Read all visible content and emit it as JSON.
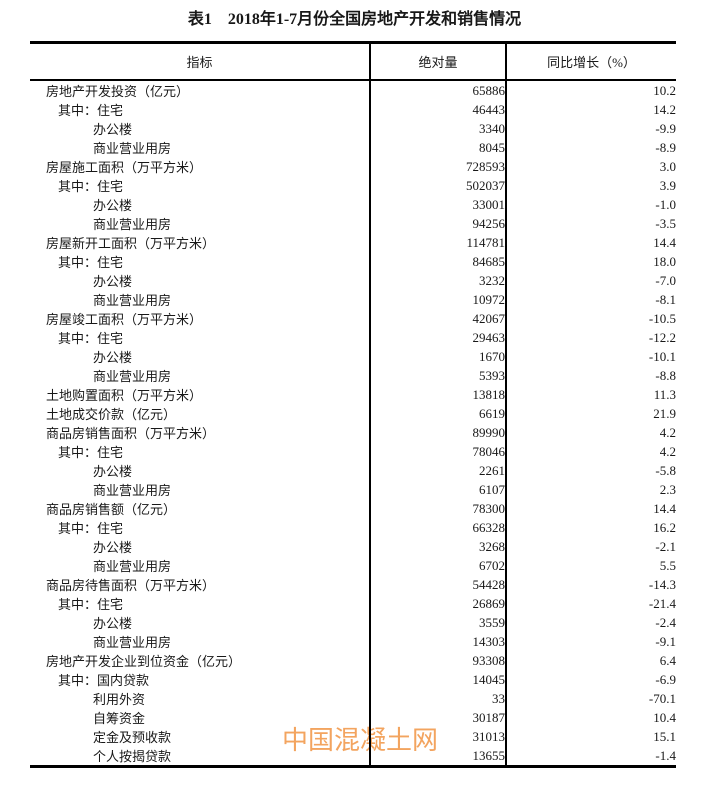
{
  "page": {
    "title": "表1　2018年1-7月份全国房地产开发和销售情况",
    "watermark": "中国混凝土网",
    "watermark_color": "#f3a45f",
    "text_color": "#181818",
    "border_color": "#000000"
  },
  "table": {
    "headers": [
      "指标",
      "绝对量",
      "同比增长（%）"
    ],
    "rows": [
      {
        "label": "房地产开发投资（亿元）",
        "indent": 0,
        "absolute": "65886",
        "growth": "10.2"
      },
      {
        "label": "其中：住宅",
        "indent": 1,
        "absolute": "46443",
        "growth": "14.2"
      },
      {
        "label": "办公楼",
        "indent": 2,
        "absolute": "3340",
        "growth": "-9.9"
      },
      {
        "label": "商业营业用房",
        "indent": 2,
        "absolute": "8045",
        "growth": "-8.9"
      },
      {
        "label": "房屋施工面积（万平方米）",
        "indent": 0,
        "absolute": "728593",
        "growth": "3.0"
      },
      {
        "label": "其中：住宅",
        "indent": 1,
        "absolute": "502037",
        "growth": "3.9"
      },
      {
        "label": "办公楼",
        "indent": 2,
        "absolute": "33001",
        "growth": "-1.0"
      },
      {
        "label": "商业营业用房",
        "indent": 2,
        "absolute": "94256",
        "growth": "-3.5"
      },
      {
        "label": "房屋新开工面积（万平方米）",
        "indent": 0,
        "absolute": "114781",
        "growth": "14.4"
      },
      {
        "label": "其中：住宅",
        "indent": 1,
        "absolute": "84685",
        "growth": "18.0"
      },
      {
        "label": "办公楼",
        "indent": 2,
        "absolute": "3232",
        "growth": "-7.0"
      },
      {
        "label": "商业营业用房",
        "indent": 2,
        "absolute": "10972",
        "growth": "-8.1"
      },
      {
        "label": "房屋竣工面积（万平方米）",
        "indent": 0,
        "absolute": "42067",
        "growth": "-10.5"
      },
      {
        "label": "其中：住宅",
        "indent": 1,
        "absolute": "29463",
        "growth": "-12.2"
      },
      {
        "label": "办公楼",
        "indent": 2,
        "absolute": "1670",
        "growth": "-10.1"
      },
      {
        "label": "商业营业用房",
        "indent": 2,
        "absolute": "5393",
        "growth": "-8.8"
      },
      {
        "label": "土地购置面积（万平方米）",
        "indent": 0,
        "absolute": "13818",
        "growth": "11.3"
      },
      {
        "label": "土地成交价款（亿元）",
        "indent": 0,
        "absolute": "6619",
        "growth": "21.9"
      },
      {
        "label": "商品房销售面积（万平方米）",
        "indent": 0,
        "absolute": "89990",
        "growth": "4.2"
      },
      {
        "label": "其中：住宅",
        "indent": 1,
        "absolute": "78046",
        "growth": "4.2"
      },
      {
        "label": "办公楼",
        "indent": 2,
        "absolute": "2261",
        "growth": "-5.8"
      },
      {
        "label": "商业营业用房",
        "indent": 2,
        "absolute": "6107",
        "growth": "2.3"
      },
      {
        "label": "商品房销售额（亿元）",
        "indent": 0,
        "absolute": "78300",
        "growth": "14.4"
      },
      {
        "label": "其中：住宅",
        "indent": 1,
        "absolute": "66328",
        "growth": "16.2"
      },
      {
        "label": "办公楼",
        "indent": 2,
        "absolute": "3268",
        "growth": "-2.1"
      },
      {
        "label": "商业营业用房",
        "indent": 2,
        "absolute": "6702",
        "growth": "5.5"
      },
      {
        "label": "商品房待售面积（万平方米）",
        "indent": 0,
        "absolute": "54428",
        "growth": "-14.3"
      },
      {
        "label": "其中：住宅",
        "indent": 1,
        "absolute": "26869",
        "growth": "-21.4"
      },
      {
        "label": "办公楼",
        "indent": 2,
        "absolute": "3559",
        "growth": "-2.4"
      },
      {
        "label": "商业营业用房",
        "indent": 2,
        "absolute": "14303",
        "growth": "-9.1"
      },
      {
        "label": "房地产开发企业到位资金（亿元）",
        "indent": 0,
        "absolute": "93308",
        "growth": "6.4"
      },
      {
        "label": "其中：国内贷款",
        "indent": 1,
        "absolute": "14045",
        "growth": "-6.9"
      },
      {
        "label": "利用外资",
        "indent": 2,
        "absolute": "33",
        "growth": "-70.1"
      },
      {
        "label": "自筹资金",
        "indent": 2,
        "absolute": "30187",
        "growth": "10.4"
      },
      {
        "label": "定金及预收款",
        "indent": 2,
        "absolute": "31013",
        "growth": "15.1"
      },
      {
        "label": "个人按揭贷款",
        "indent": 2,
        "absolute": "13655",
        "growth": "-1.4"
      }
    ]
  }
}
